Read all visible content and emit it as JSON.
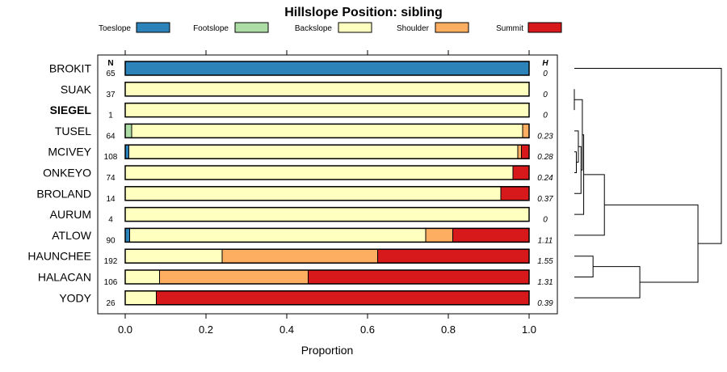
{
  "chart_data": {
    "type": "bar",
    "subtype": "stacked-horizontal-proportion",
    "title": "Hillslope Position: sibling",
    "xlabel": "Proportion",
    "ylabel": "",
    "xlim": [
      0,
      1
    ],
    "xticks": [
      "0.0",
      "0.2",
      "0.4",
      "0.6",
      "0.8",
      "1.0"
    ],
    "xtick_values": [
      0,
      0.2,
      0.4,
      0.6,
      0.8,
      1.0
    ],
    "n_header": "N",
    "h_header": "H",
    "legend": [
      {
        "name": "Toeslope",
        "color": "#2B83BA"
      },
      {
        "name": "Footslope",
        "color": "#ABDDA4"
      },
      {
        "name": "Backslope",
        "color": "#FFFFBF"
      },
      {
        "name": "Shoulder",
        "color": "#FDAE61"
      },
      {
        "name": "Summit",
        "color": "#D7191C"
      }
    ],
    "rows": [
      {
        "label": "BROKIT",
        "bold": false,
        "n": "65",
        "h": "0",
        "values": [
          1.0,
          0,
          0,
          0,
          0
        ]
      },
      {
        "label": "SUAK",
        "bold": false,
        "n": "37",
        "h": "0",
        "values": [
          0,
          0,
          1.0,
          0,
          0
        ]
      },
      {
        "label": "SIEGEL",
        "bold": true,
        "n": "1",
        "h": "0",
        "values": [
          0,
          0,
          1.0,
          0,
          0
        ]
      },
      {
        "label": "TUSEL",
        "bold": false,
        "n": "64",
        "h": "0.23",
        "values": [
          0,
          0.016,
          0.968,
          0.016,
          0
        ]
      },
      {
        "label": "MCIVEY",
        "bold": false,
        "n": "108",
        "h": "0.28",
        "values": [
          0.009,
          0,
          0.963,
          0.009,
          0.019
        ]
      },
      {
        "label": "ONKEYO",
        "bold": false,
        "n": "74",
        "h": "0.24",
        "values": [
          0,
          0,
          0.96,
          0,
          0.04
        ]
      },
      {
        "label": "BROLAND",
        "bold": false,
        "n": "14",
        "h": "0.37",
        "values": [
          0,
          0,
          0.93,
          0,
          0.07
        ]
      },
      {
        "label": "AURUM",
        "bold": false,
        "n": "4",
        "h": "0",
        "values": [
          0,
          0,
          1.0,
          0,
          0
        ]
      },
      {
        "label": "ATLOW",
        "bold": false,
        "n": "90",
        "h": "1.11",
        "values": [
          0.011,
          0,
          0.733,
          0.067,
          0.189
        ]
      },
      {
        "label": "HAUNCHEE",
        "bold": false,
        "n": "192",
        "h": "1.55",
        "values": [
          0,
          0,
          0.24,
          0.385,
          0.375
        ]
      },
      {
        "label": "HALACAN",
        "bold": false,
        "n": "106",
        "h": "1.31",
        "values": [
          0,
          0,
          0.085,
          0.368,
          0.547
        ]
      },
      {
        "label": "YODY",
        "bold": false,
        "n": "26",
        "h": "0.39",
        "values": [
          0,
          0,
          0.077,
          0,
          0.923
        ]
      }
    ],
    "dendrogram": {
      "leaf_order": [
        "BROKIT",
        "SUAK",
        "SIEGEL",
        "TUSEL",
        "MCIVEY",
        "ONKEYO",
        "BROLAND",
        "AURUM",
        "ATLOW",
        "HAUNCHEE",
        "HALACAN",
        "YODY"
      ],
      "merges": [
        {
          "a": -2,
          "b": -3,
          "height": 0.0
        },
        {
          "a": -5,
          "b": -6,
          "height": 0.03
        },
        {
          "a": -4,
          "b": 2,
          "height": 0.06
        },
        {
          "a": 3,
          "b": -7,
          "height": 0.1
        },
        {
          "a": 1,
          "b": 4,
          "height": 0.12
        },
        {
          "a": -8,
          "b": 5,
          "height": 0.14
        },
        {
          "a": 6,
          "b": -9,
          "height": 0.45
        },
        {
          "a": -11,
          "b": -10,
          "height": 0.28
        },
        {
          "a": 8,
          "b": -12,
          "height": 0.98
        },
        {
          "a": 7,
          "b": 9,
          "height": 1.85
        },
        {
          "a": -1,
          "b": 10,
          "height": 2.2
        }
      ]
    }
  }
}
